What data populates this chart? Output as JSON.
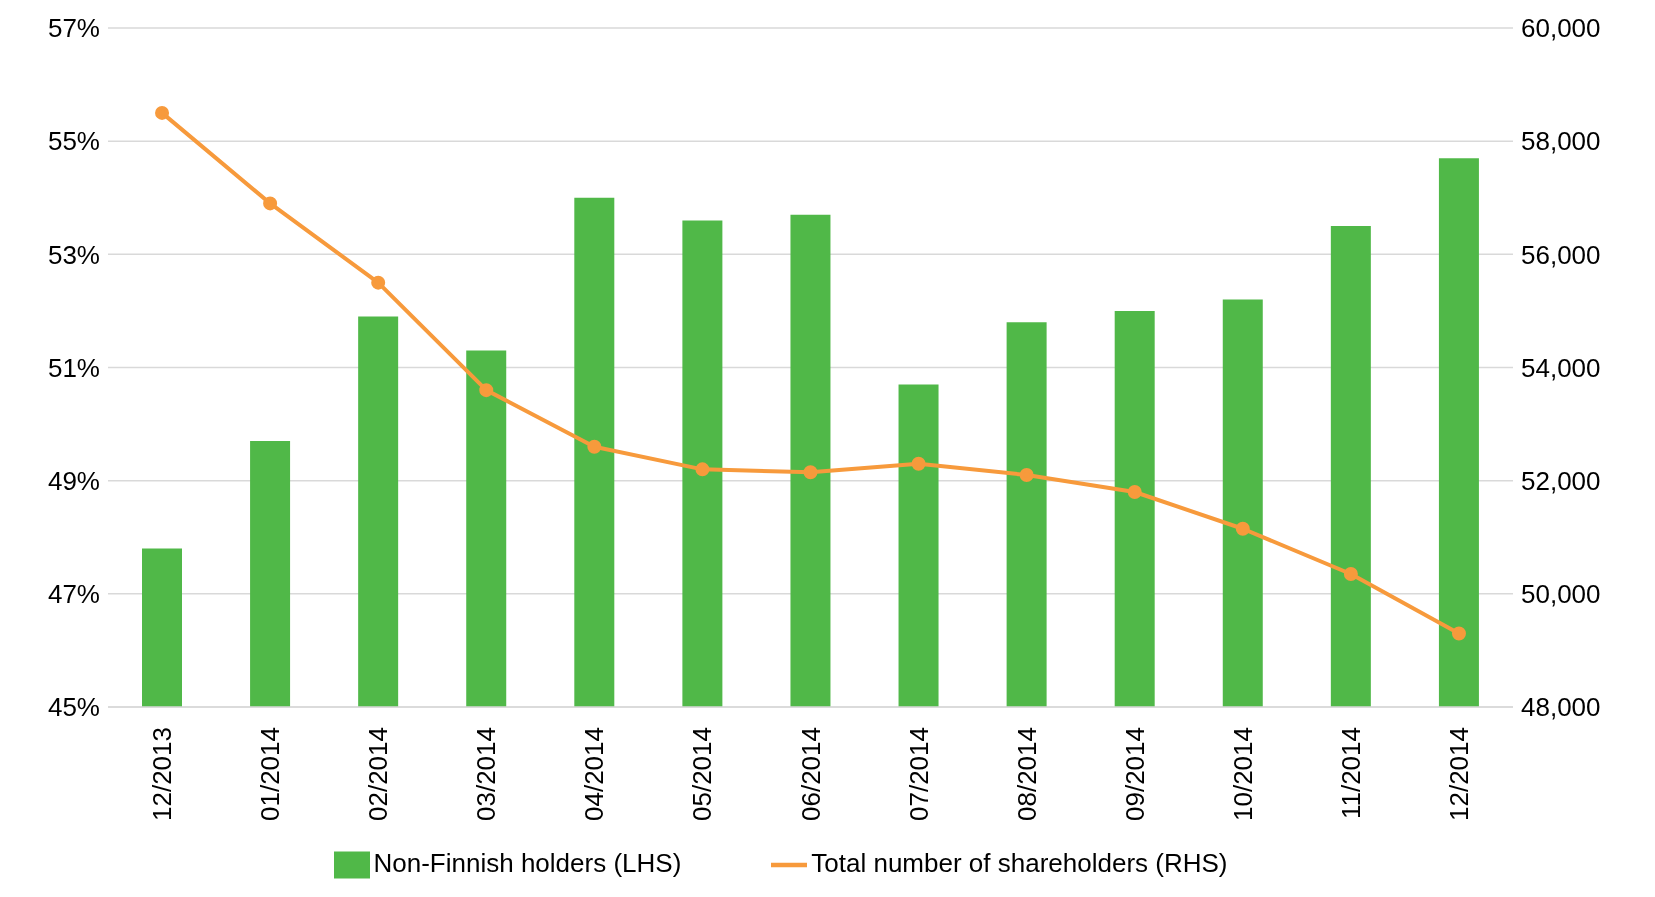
{
  "chart_data": {
    "type": "bar",
    "categories": [
      "12/2013",
      "01/2014",
      "02/2014",
      "03/2014",
      "04/2014",
      "05/2014",
      "06/2014",
      "07/2014",
      "08/2014",
      "09/2014",
      "10/2014",
      "11/2014",
      "12/2014"
    ],
    "series": [
      {
        "name": "Non-Finnish holders (LHS)",
        "color": "#50b848",
        "values": [
          47.8,
          49.7,
          51.9,
          51.3,
          54.0,
          53.6,
          53.7,
          50.7,
          51.8,
          52.0,
          52.2,
          53.5,
          54.7
        ]
      },
      {
        "name": "Total number of shareholders (RHS)",
        "type": "line",
        "axis": "y2",
        "color": "#f79a3c",
        "marker": "circle",
        "values": [
          58500,
          56900,
          55500,
          53600,
          52600,
          52200,
          52150,
          52300,
          52100,
          51800,
          51150,
          50350,
          49300
        ]
      }
    ],
    "ylim": [
      45,
      57
    ],
    "yticks": [
      {
        "value": 45,
        "label": "45%"
      },
      {
        "value": 47,
        "label": "47%"
      },
      {
        "value": 49,
        "label": "49%"
      },
      {
        "value": 51,
        "label": "51%"
      },
      {
        "value": 53,
        "label": "53%"
      },
      {
        "value": 55,
        "label": "55%"
      },
      {
        "value": 57,
        "label": "57%"
      }
    ],
    "y2lim": [
      48000,
      60000
    ],
    "y2ticks": [
      {
        "value": 48000,
        "label": "48,000"
      },
      {
        "value": 50000,
        "label": "50,000"
      },
      {
        "value": 52000,
        "label": "52,000"
      },
      {
        "value": 54000,
        "label": "54,000"
      },
      {
        "value": 56000,
        "label": "56,000"
      },
      {
        "value": 58000,
        "label": "58,000"
      },
      {
        "value": 60000,
        "label": "60,000"
      }
    ],
    "grid": "y",
    "legend": "bottom"
  }
}
